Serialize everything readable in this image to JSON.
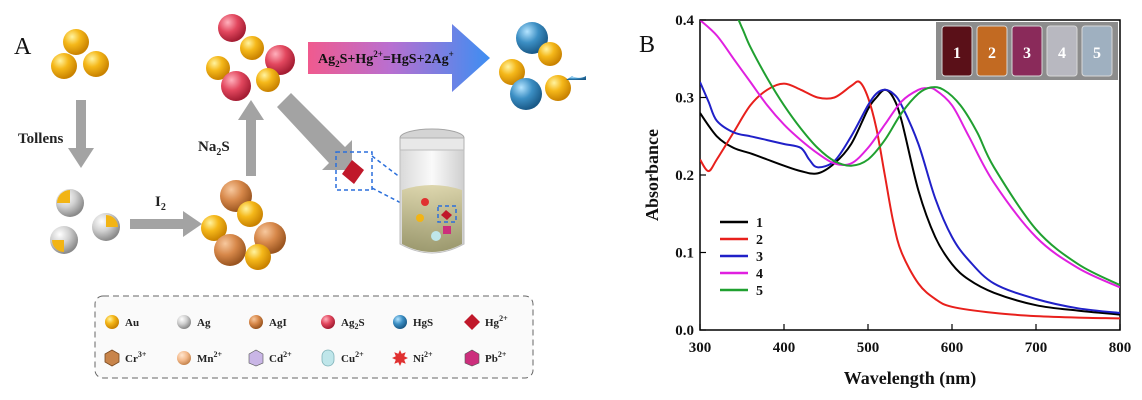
{
  "panel_a": {
    "label": "A",
    "step_tollens": "Tollens",
    "step_i2": "I",
    "step_i2_sub": "2",
    "step_na2s": "Na",
    "step_na2s_sub": "2",
    "step_na2s_tail": "S",
    "equation": {
      "p1": "Ag",
      "p1_sub": "2",
      "p2": "S+Hg",
      "p2_sup": "2+",
      "p3": "=HgS+2Ag",
      "p3_sup": "+"
    },
    "legend": [
      {
        "label": "Au",
        "kind": "sphere",
        "color": "#f2b414"
      },
      {
        "label": "Ag",
        "kind": "sphere",
        "color": "#c8c8c8"
      },
      {
        "label": "AgI",
        "kind": "sphere",
        "color": "#d7884a"
      },
      {
        "label": "Ag",
        "sub": "2",
        "tail": "S",
        "kind": "sphere",
        "color": "#e2475e"
      },
      {
        "label": "HgS",
        "kind": "sphere",
        "color": "#3c8fc4"
      },
      {
        "label": "Hg",
        "sup": "2+",
        "kind": "diamond",
        "color": "#c0182a"
      },
      {
        "label": "Cr",
        "sup": "3+",
        "kind": "hexagon",
        "color": "#c8844a"
      },
      {
        "label": "Mn",
        "sup": "2+",
        "kind": "sphere",
        "color": "#f3b98b"
      },
      {
        "label": "Cd",
        "sup": "2+",
        "kind": "cube",
        "color": "#c9b6e6"
      },
      {
        "label": "Cu",
        "sup": "2+",
        "kind": "capsule",
        "color": "#bfe6ea"
      },
      {
        "label": "Ni",
        "sup": "2+",
        "kind": "star",
        "color": "#e03030"
      },
      {
        "label": "Pb",
        "sup": "2+",
        "kind": "cube",
        "color": "#cc2e7c"
      }
    ]
  },
  "panel_b": {
    "label": "B",
    "vial_labels": [
      "1",
      "2",
      "3",
      "4",
      "5"
    ],
    "vial_colors": [
      "#5a1018",
      "#c26a22",
      "#8a2a5a",
      "#b8b8c0",
      "#9fb0c0"
    ]
  },
  "chart_data": {
    "type": "line",
    "xlabel": "Wavelength (nm)",
    "ylabel": "Absorbance",
    "xlim": [
      300,
      800
    ],
    "ylim": [
      0.0,
      0.4
    ],
    "xticks": [
      "300",
      "400",
      "500",
      "600",
      "700",
      "800"
    ],
    "yticks": [
      "0.0",
      "0.1",
      "0.2",
      "0.3",
      "0.4"
    ],
    "legend_position": "lower-left",
    "series": [
      {
        "name": "1",
        "color": "#000000",
        "x": [
          300,
          320,
          340,
          360,
          380,
          400,
          420,
          440,
          460,
          480,
          500,
          510,
          520,
          530,
          540,
          560,
          580,
          600,
          620,
          650,
          700,
          750,
          800
        ],
        "y": [
          0.28,
          0.25,
          0.235,
          0.228,
          0.22,
          0.212,
          0.205,
          0.202,
          0.215,
          0.24,
          0.285,
          0.3,
          0.31,
          0.3,
          0.27,
          0.18,
          0.12,
          0.085,
          0.065,
          0.048,
          0.032,
          0.025,
          0.02
        ]
      },
      {
        "name": "2",
        "color": "#e8201c",
        "x": [
          300,
          310,
          320,
          340,
          360,
          380,
          400,
          420,
          440,
          460,
          480,
          490,
          500,
          510,
          520,
          530,
          540,
          560,
          580,
          600,
          650,
          700,
          750,
          800
        ],
        "y": [
          0.22,
          0.205,
          0.22,
          0.255,
          0.29,
          0.31,
          0.318,
          0.31,
          0.3,
          0.3,
          0.315,
          0.32,
          0.3,
          0.26,
          0.2,
          0.14,
          0.1,
          0.06,
          0.04,
          0.03,
          0.022,
          0.018,
          0.016,
          0.015
        ]
      },
      {
        "name": "3",
        "color": "#2020c8",
        "x": [
          300,
          310,
          320,
          340,
          360,
          380,
          400,
          420,
          430,
          440,
          460,
          480,
          500,
          510,
          520,
          530,
          540,
          560,
          580,
          600,
          620,
          650,
          700,
          750,
          800
        ],
        "y": [
          0.32,
          0.295,
          0.27,
          0.255,
          0.25,
          0.245,
          0.24,
          0.235,
          0.22,
          0.21,
          0.218,
          0.25,
          0.29,
          0.305,
          0.31,
          0.305,
          0.29,
          0.24,
          0.17,
          0.12,
          0.09,
          0.06,
          0.04,
          0.028,
          0.022
        ]
      },
      {
        "name": "4",
        "color": "#e020e0",
        "x": [
          300,
          320,
          340,
          360,
          380,
          400,
          420,
          440,
          460,
          480,
          500,
          520,
          540,
          560,
          570,
          580,
          600,
          620,
          650,
          700,
          750,
          800
        ],
        "y": [
          0.4,
          0.38,
          0.35,
          0.32,
          0.29,
          0.265,
          0.245,
          0.228,
          0.215,
          0.215,
          0.235,
          0.265,
          0.295,
          0.31,
          0.312,
          0.31,
          0.29,
          0.25,
          0.19,
          0.12,
          0.08,
          0.055
        ]
      },
      {
        "name": "5",
        "color": "#20a030",
        "x": [
          300,
          320,
          340,
          350,
          360,
          380,
          400,
          420,
          440,
          460,
          480,
          500,
          520,
          540,
          560,
          575,
          590,
          610,
          630,
          650,
          700,
          750,
          800
        ],
        "y": [
          0.42,
          0.42,
          0.41,
          0.39,
          0.365,
          0.325,
          0.29,
          0.26,
          0.235,
          0.218,
          0.212,
          0.22,
          0.245,
          0.28,
          0.305,
          0.313,
          0.31,
          0.29,
          0.255,
          0.21,
          0.13,
          0.085,
          0.058
        ]
      }
    ]
  }
}
